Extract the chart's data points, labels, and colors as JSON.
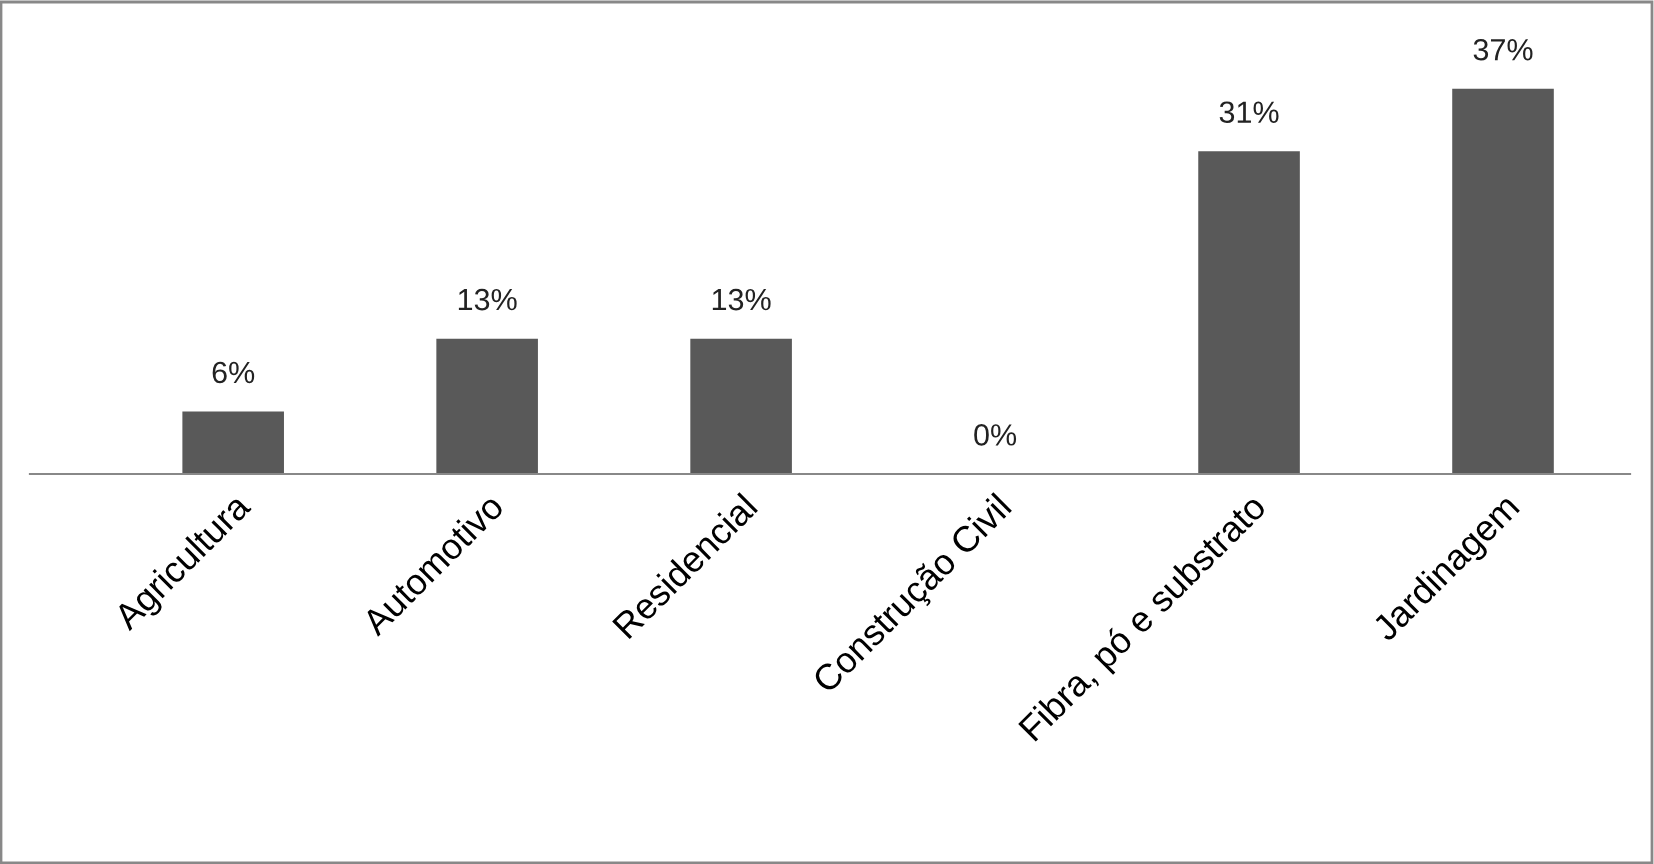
{
  "chart_data": {
    "type": "bar",
    "categories": [
      "Agricultura",
      "Automotivo",
      "Residencial",
      "Construção Civil",
      "Fibra, pó e substrato",
      "Jardinagem"
    ],
    "values": [
      6,
      13,
      13,
      0,
      31,
      37
    ],
    "value_labels": [
      "6%",
      "13%",
      "13%",
      "0%",
      "31%",
      "37%"
    ],
    "color": "#595959",
    "grid": false,
    "legend": false
  }
}
